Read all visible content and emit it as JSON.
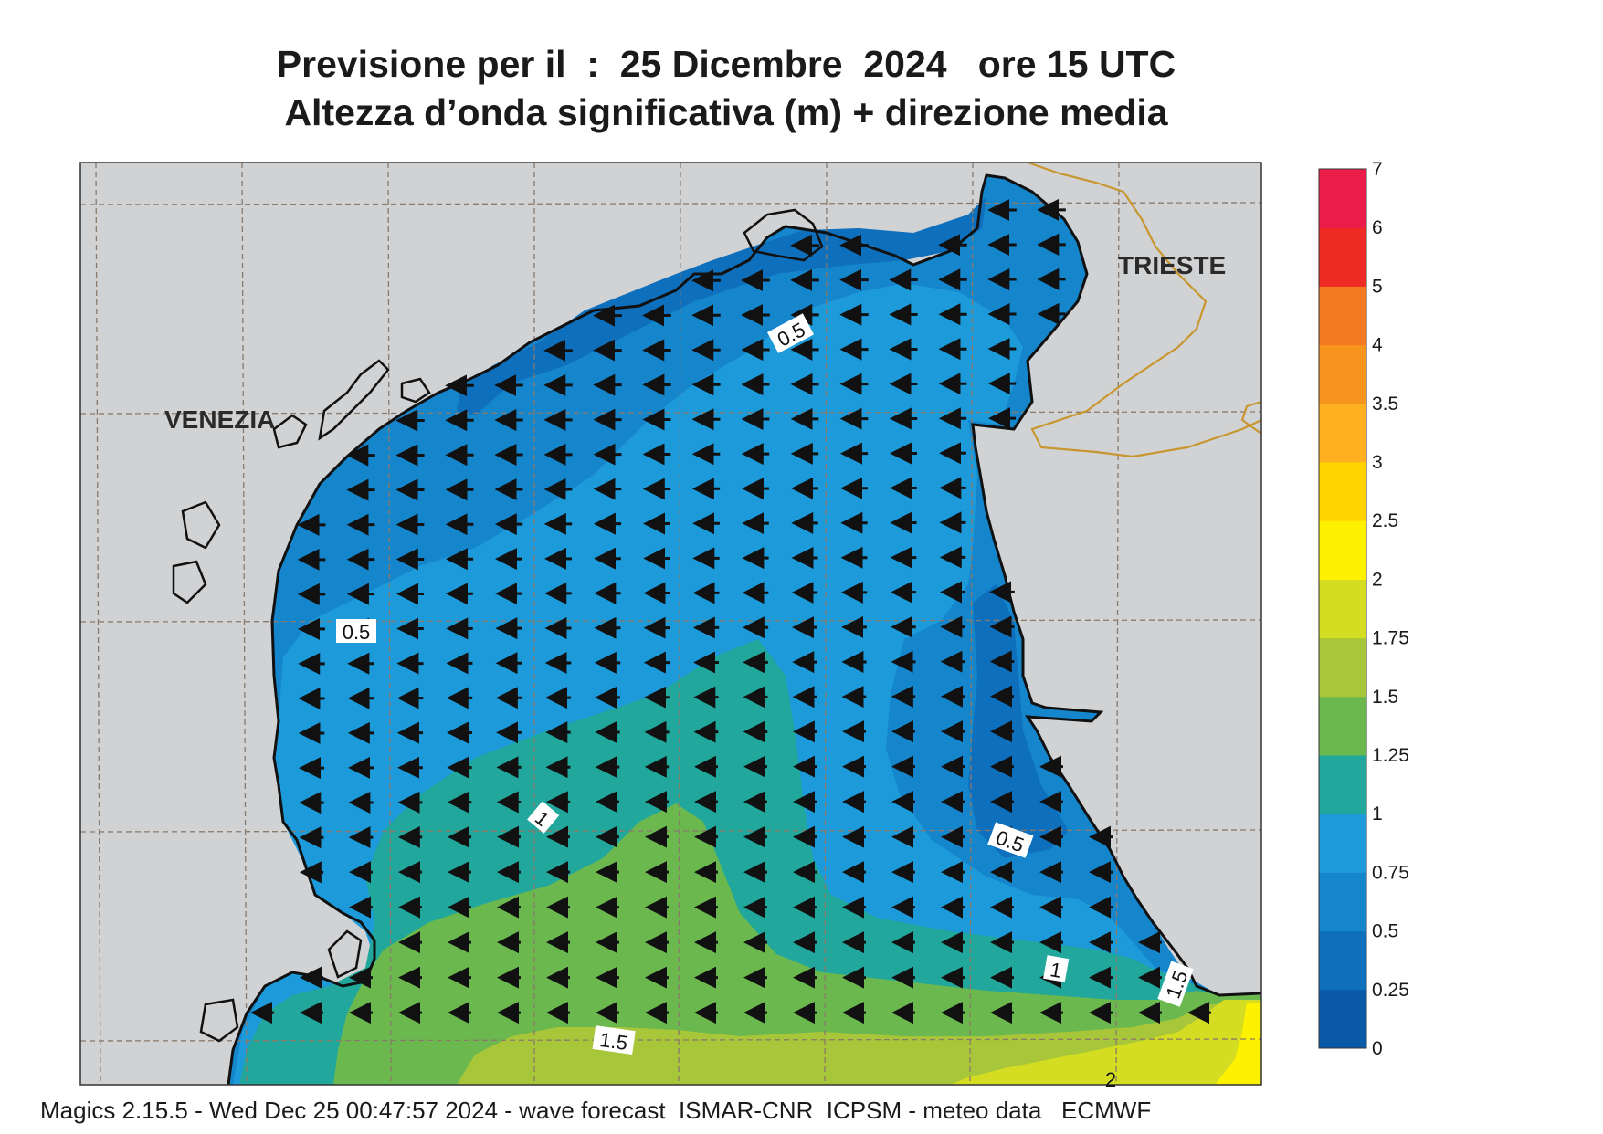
{
  "title": {
    "line1": "Previsione per il  :  25 Dicembre  2024   ore 15 UTC",
    "line2": "Altezza d’onda significativa (m) + direzione media"
  },
  "cities": [
    {
      "name": "VENEZIA"
    },
    {
      "name": "TRIESTE"
    }
  ],
  "colorbar": {
    "levels": [
      {
        "label": "0",
        "color": "#0a5aa8"
      },
      {
        "label": "0.25",
        "color": "#0e6fbd"
      },
      {
        "label": "0.5",
        "color": "#1585cc"
      },
      {
        "label": "0.75",
        "color": "#1d9ad9"
      },
      {
        "label": "1",
        "color": "#21a79c"
      },
      {
        "label": "1.25",
        "color": "#6bb84f"
      },
      {
        "label": "1.5",
        "color": "#a8c63a"
      },
      {
        "label": "1.75",
        "color": "#d4dd22"
      },
      {
        "label": "2",
        "color": "#fff200"
      },
      {
        "label": "2.5",
        "color": "#ffd400"
      },
      {
        "label": "3",
        "color": "#ffb020"
      },
      {
        "label": "3.5",
        "color": "#f7941d"
      },
      {
        "label": "4",
        "color": "#f47920"
      },
      {
        "label": "5",
        "color": "#ee2a24"
      },
      {
        "label": "6",
        "color": "#ec1c4a"
      },
      {
        "label": "7",
        "color": ""
      }
    ]
  },
  "contour_labels": [
    "0.5",
    "0.5",
    "1",
    "0.5",
    "1",
    "1.5",
    "1.5",
    "2"
  ],
  "colors": {
    "land": "#d1d2d4",
    "water_0_25": "#0e6fbd",
    "water_0_5": "#1585cc",
    "water_0_75": "#1d9ad9",
    "water_1": "#21a79c",
    "water_1_25": "#6bb84f",
    "water_1_5": "#a8c63a",
    "water_1_75": "#d4dd22",
    "water_2": "#fff200",
    "coast": "#111111",
    "border": "#c8962e",
    "grid": "#8a7a6a"
  },
  "footer": "Magics 2.15.5 - Wed Dec 25 00:47:57 2024 - wave forecast  ISMAR-CNR  ICPSM - meteo data   ECMWF"
}
